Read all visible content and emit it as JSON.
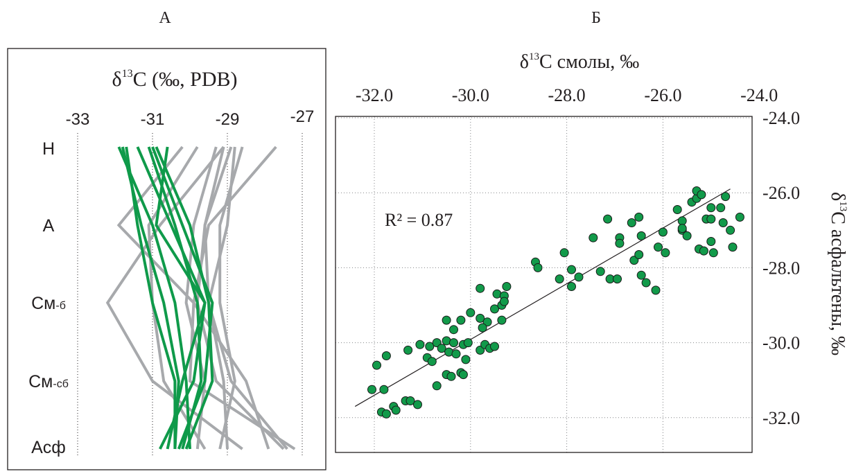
{
  "panels": {
    "a_label": "А",
    "b_label": "Б"
  },
  "chart_data": [
    {
      "type": "line",
      "panel": "А",
      "title_prefix": "δ",
      "title_sup": "13",
      "title_suffix": "C (‰, PDB)",
      "xlim": [
        -34,
        -26
      ],
      "x_ticks": [
        -33,
        -31,
        -29,
        -27
      ],
      "x_tick_labels": [
        "-33",
        "-31",
        "-29",
        "-27"
      ],
      "categories": [
        "Н",
        "А",
        "См-б",
        "См-сб",
        "Асф"
      ],
      "category_labels": [
        {
          "main": "Н",
          "sub": ""
        },
        {
          "main": "А",
          "sub": ""
        },
        {
          "main": "См",
          "sub": "-б"
        },
        {
          "main": "См",
          "sub": "-сб"
        },
        {
          "main": "Асф",
          "sub": ""
        }
      ],
      "grid": "vertical dotted",
      "colors": {
        "gray": "#a7a9ac",
        "green": "#0f9a4a"
      },
      "series": [
        {
          "group": "gray",
          "values": [
            -29.8,
            -31.1,
            -31.0,
            -30.7,
            -29.6
          ]
        },
        {
          "group": "gray",
          "values": [
            -29.1,
            -30.8,
            -32.2,
            -31.0,
            -28.6
          ]
        },
        {
          "group": "gray",
          "values": [
            -27.7,
            -29.5,
            -29.9,
            -30.0,
            -27.2
          ]
        },
        {
          "group": "gray",
          "values": [
            -29.1,
            -29.6,
            -29.8,
            -29.3,
            -27.5
          ]
        },
        {
          "group": "gray",
          "values": [
            -28.8,
            -29.0,
            -29.5,
            -28.9,
            -27.4
          ]
        },
        {
          "group": "gray",
          "values": [
            -30.2,
            -31.9,
            -29.9,
            -28.5,
            -27.9
          ]
        },
        {
          "group": "gray",
          "values": [
            -28.6,
            -29.2,
            -29.2,
            -28.8,
            -29.2
          ]
        },
        {
          "group": "gray",
          "values": [
            -29.3,
            -29.9,
            -30.1,
            -29.6,
            -29.8
          ]
        },
        {
          "group": "gray",
          "values": [
            -28.9,
            -29.6,
            -29.5,
            -29.1,
            -29.0
          ]
        },
        {
          "group": "green",
          "values": [
            -31.9,
            -31.0,
            -30.4,
            -30.1,
            -30.0
          ]
        },
        {
          "group": "green",
          "values": [
            -31.8,
            -31.3,
            -30.7,
            -30.3,
            -30.4
          ]
        },
        {
          "group": "green",
          "values": [
            -31.4,
            -30.5,
            -29.6,
            -29.9,
            -30.8
          ]
        },
        {
          "group": "green",
          "values": [
            -30.6,
            -30.9,
            -29.6,
            -30.2,
            -30.6
          ]
        },
        {
          "group": "green",
          "values": [
            -31.0,
            -30.2,
            -29.4,
            -29.6,
            -30.3
          ]
        },
        {
          "group": "green",
          "values": [
            -31.1,
            -30.4,
            -29.8,
            -29.7,
            -30.2
          ]
        },
        {
          "group": "green",
          "values": [
            -30.9,
            -30.0,
            -29.5,
            -29.4,
            -30.1
          ]
        },
        {
          "group": "green",
          "values": [
            -31.7,
            -31.4,
            -31.0,
            -30.4,
            -30.4
          ]
        }
      ]
    },
    {
      "type": "scatter",
      "panel": "Б",
      "x_title_prefix": "δ",
      "x_title_sup": "13",
      "x_title_suffix": "C смолы, ‰",
      "y_title_prefix": "δ",
      "y_title_sup": "13",
      "y_title_suffix": "C асфальтены, ‰",
      "xlim": [
        -32.5,
        -24.5
      ],
      "ylim": [
        -33,
        -24
      ],
      "x_ticks": [
        -32,
        -30,
        -28,
        -26,
        -24
      ],
      "x_tick_labels": [
        "-32.0",
        "-30.0",
        "-28.0",
        "-26.0",
        "-24.0"
      ],
      "y_ticks": [
        -24,
        -26,
        -28,
        -30,
        -32
      ],
      "y_tick_labels": [
        "-24.0",
        "-26.0",
        "-28.0",
        "-30.0",
        "-32.0"
      ],
      "grid": "dotted",
      "annotation": "R² = 0.87",
      "trendline": {
        "x": [
          -32.4,
          -24.6
        ],
        "y": [
          -31.7,
          -25.9
        ]
      },
      "point_color": "#129a4a",
      "points": [
        [
          -32.05,
          -31.25
        ],
        [
          -31.95,
          -30.6
        ],
        [
          -31.75,
          -30.35
        ],
        [
          -31.85,
          -31.85
        ],
        [
          -31.75,
          -31.9
        ],
        [
          -31.6,
          -31.7
        ],
        [
          -31.55,
          -31.8
        ],
        [
          -31.35,
          -31.55
        ],
        [
          -31.25,
          -31.55
        ],
        [
          -31.1,
          -31.65
        ],
        [
          -31.8,
          -31.25
        ],
        [
          -31.3,
          -30.2
        ],
        [
          -31.05,
          -30.05
        ],
        [
          -30.85,
          -30.1
        ],
        [
          -30.9,
          -30.4
        ],
        [
          -30.8,
          -30.5
        ],
        [
          -30.7,
          -30.0
        ],
        [
          -30.6,
          -30.15
        ],
        [
          -30.5,
          -29.95
        ],
        [
          -30.45,
          -30.25
        ],
        [
          -30.35,
          -30.0
        ],
        [
          -30.3,
          -30.3
        ],
        [
          -30.15,
          -30.05
        ],
        [
          -30.05,
          -30.0
        ],
        [
          -30.1,
          -30.45
        ],
        [
          -30.7,
          -31.15
        ],
        [
          -30.5,
          -30.85
        ],
        [
          -30.4,
          -30.9
        ],
        [
          -30.2,
          -30.8
        ],
        [
          -30.15,
          -30.85
        ],
        [
          -30.5,
          -29.4
        ],
        [
          -30.35,
          -29.65
        ],
        [
          -30.2,
          -29.4
        ],
        [
          -30.0,
          -29.2
        ],
        [
          -29.8,
          -29.35
        ],
        [
          -29.65,
          -29.45
        ],
        [
          -29.75,
          -29.6
        ],
        [
          -29.8,
          -30.2
        ],
        [
          -29.7,
          -30.05
        ],
        [
          -29.6,
          -30.15
        ],
        [
          -29.5,
          -29.1
        ],
        [
          -29.35,
          -29.4
        ],
        [
          -29.5,
          -30.1
        ],
        [
          -29.8,
          -28.55
        ],
        [
          -29.45,
          -28.7
        ],
        [
          -29.3,
          -28.75
        ],
        [
          -29.25,
          -28.5
        ],
        [
          -29.35,
          -29.0
        ],
        [
          -29.3,
          -28.9
        ],
        [
          -28.65,
          -27.85
        ],
        [
          -28.6,
          -28.0
        ],
        [
          -28.15,
          -28.3
        ],
        [
          -28.05,
          -27.6
        ],
        [
          -27.9,
          -28.05
        ],
        [
          -27.75,
          -28.25
        ],
        [
          -27.9,
          -28.5
        ],
        [
          -27.45,
          -27.2
        ],
        [
          -27.3,
          -28.1
        ],
        [
          -27.1,
          -28.3
        ],
        [
          -26.95,
          -28.3
        ],
        [
          -27.15,
          -26.7
        ],
        [
          -26.9,
          -27.2
        ],
        [
          -26.9,
          -27.35
        ],
        [
          -26.65,
          -26.8
        ],
        [
          -26.6,
          -27.8
        ],
        [
          -26.5,
          -27.65
        ],
        [
          -26.5,
          -26.65
        ],
        [
          -26.45,
          -27.15
        ],
        [
          -26.45,
          -28.2
        ],
        [
          -26.35,
          -28.4
        ],
        [
          -26.15,
          -28.6
        ],
        [
          -26.1,
          -27.45
        ],
        [
          -26.0,
          -27.05
        ],
        [
          -25.95,
          -27.6
        ],
        [
          -25.7,
          -26.45
        ],
        [
          -25.6,
          -27.0
        ],
        [
          -25.6,
          -26.75
        ],
        [
          -25.6,
          -26.95
        ],
        [
          -25.5,
          -27.15
        ],
        [
          -25.4,
          -26.25
        ],
        [
          -25.3,
          -26.15
        ],
        [
          -25.3,
          -25.95
        ],
        [
          -25.2,
          -26.05
        ],
        [
          -25.25,
          -27.5
        ],
        [
          -25.15,
          -27.55
        ],
        [
          -24.95,
          -27.6
        ],
        [
          -25.0,
          -27.3
        ],
        [
          -25.1,
          -26.7
        ],
        [
          -25.0,
          -26.7
        ],
        [
          -25.0,
          -26.4
        ],
        [
          -24.8,
          -26.4
        ],
        [
          -24.7,
          -26.1
        ],
        [
          -24.75,
          -26.8
        ],
        [
          -24.6,
          -27.0
        ],
        [
          -24.55,
          -27.45
        ],
        [
          -24.4,
          -26.65
        ]
      ]
    }
  ]
}
